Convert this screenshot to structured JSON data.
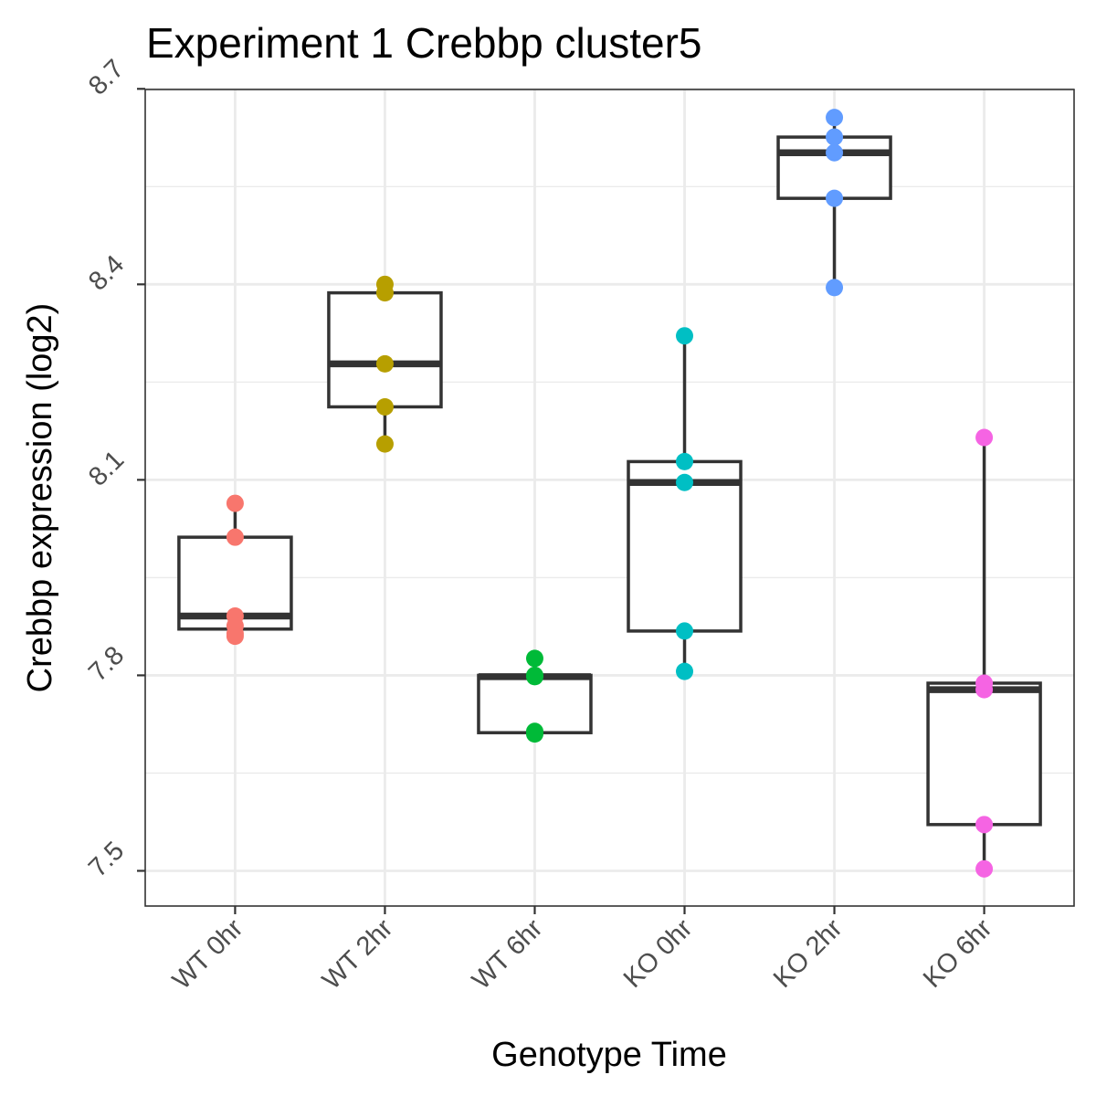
{
  "chart_data": {
    "type": "boxplot",
    "title": "Experiment 1 Crebbp cluster5",
    "xlabel": "Genotype Time",
    "ylabel": "Crebbp expression (log2)",
    "ylim": [
      7.446,
      8.699
    ],
    "yticks": [
      7.5,
      7.8,
      8.1,
      8.4,
      8.7
    ],
    "ytick_labels": [
      "7.5",
      "7.8",
      "8.1",
      "8.4",
      "8.7"
    ],
    "categories": [
      "WT 0hr",
      "WT 2hr",
      "WT 6hr",
      "KO 0hr",
      "KO 2hr",
      "KO 6hr"
    ],
    "grid": true,
    "legend": "none",
    "colors": [
      "#F8766D",
      "#B79F00",
      "#00BA38",
      "#00BFC4",
      "#619CFF",
      "#F564E3"
    ],
    "box_color": "#333333",
    "boxes": [
      {
        "category": "WT 0hr",
        "min": 7.86,
        "q1": 7.871,
        "median": 7.891,
        "q3": 8.012,
        "max": 8.064
      },
      {
        "category": "WT 2hr",
        "min": 8.155,
        "q1": 8.212,
        "median": 8.278,
        "q3": 8.387,
        "max": 8.4
      },
      {
        "category": "WT 6hr",
        "min": 7.71,
        "q1": 7.712,
        "median": 7.798,
        "q3": 7.8,
        "max": 7.826
      },
      {
        "category": "KO 0hr",
        "min": 7.806,
        "q1": 7.868,
        "median": 8.096,
        "q3": 8.128,
        "max": 8.321
      },
      {
        "category": "KO 2hr",
        "min": 8.395,
        "q1": 8.532,
        "median": 8.602,
        "q3": 8.626,
        "max": 8.656
      },
      {
        "category": "KO 6hr",
        "min": 7.503,
        "q1": 7.571,
        "median": 7.778,
        "q3": 7.788,
        "max": 8.165
      }
    ],
    "points": [
      {
        "category": "WT 0hr",
        "values": [
          8.064,
          8.012,
          7.891,
          7.876,
          7.864,
          7.86
        ]
      },
      {
        "category": "WT 2hr",
        "values": [
          8.4,
          8.387,
          8.278,
          8.212,
          8.155
        ]
      },
      {
        "category": "WT 6hr",
        "values": [
          7.826,
          7.8,
          7.798,
          7.714,
          7.71
        ]
      },
      {
        "category": "KO 0hr",
        "values": [
          8.321,
          8.128,
          8.096,
          7.868,
          7.806
        ]
      },
      {
        "category": "KO 2hr",
        "values": [
          8.656,
          8.626,
          8.602,
          8.532,
          8.395
        ]
      },
      {
        "category": "KO 6hr",
        "values": [
          8.165,
          7.788,
          7.778,
          7.571,
          7.503
        ]
      }
    ]
  }
}
